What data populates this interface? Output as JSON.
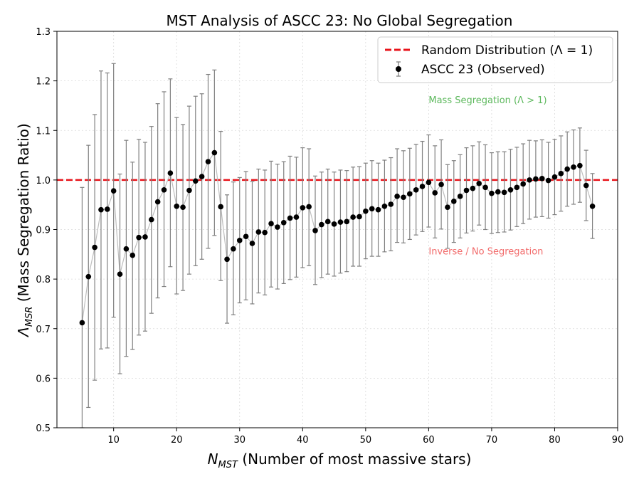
{
  "chart_data": {
    "type": "scatter",
    "title": "MST Analysis of ASCC 23: No Global Segregation",
    "xlabel": {
      "main": "N",
      "sub": "MST",
      "rest": " (Number of most massive stars)"
    },
    "ylabel": {
      "main": "Λ",
      "sub": "MSR",
      "rest": " (Mass Segregation Ratio)"
    },
    "xlim": [
      1,
      90
    ],
    "ylim": [
      0.5,
      1.3
    ],
    "xticks": [
      10,
      20,
      30,
      40,
      50,
      60,
      70,
      80,
      90
    ],
    "yticks": [
      0.5,
      0.6,
      0.7,
      0.8,
      0.9,
      1.0,
      1.1,
      1.2,
      1.3
    ],
    "ytick_labels": [
      "0.5",
      "0.6",
      "0.7",
      "0.8",
      "0.9",
      "1.0",
      "1.1",
      "1.2",
      "1.3"
    ],
    "grid": true,
    "reference_line": {
      "y": 1.0,
      "label": "Random Distribution (Λ = 1)",
      "color": "#e8141b",
      "style": "dashed"
    },
    "legend_position": "top-right",
    "series": [
      {
        "name": "ASCC 23 (Observed)",
        "marker_color": "#000000",
        "line_color": "#bdbdbd",
        "errorbar_color": "#808080",
        "x": [
          5,
          6,
          7,
          8,
          9,
          10,
          11,
          12,
          13,
          14,
          15,
          16,
          17,
          18,
          19,
          20,
          21,
          22,
          23,
          24,
          25,
          26,
          27,
          28,
          29,
          30,
          31,
          32,
          33,
          34,
          35,
          36,
          37,
          38,
          39,
          40,
          41,
          42,
          43,
          44,
          45,
          46,
          47,
          48,
          49,
          50,
          51,
          52,
          53,
          54,
          55,
          56,
          57,
          58,
          59,
          60,
          61,
          62,
          63,
          64,
          65,
          66,
          67,
          68,
          69,
          70,
          71,
          72,
          73,
          74,
          75,
          76,
          77,
          78,
          79,
          80,
          81,
          82,
          83,
          84,
          85,
          86
        ],
        "y": [
          0.712,
          0.805,
          0.864,
          0.94,
          0.941,
          0.978,
          0.81,
          0.861,
          0.848,
          0.884,
          0.885,
          0.92,
          0.956,
          0.98,
          1.014,
          0.947,
          0.945,
          0.979,
          0.998,
          1.007,
          1.037,
          1.055,
          0.946,
          0.84,
          0.861,
          0.878,
          0.886,
          0.872,
          0.895,
          0.894,
          0.912,
          0.905,
          0.914,
          0.923,
          0.925,
          0.944,
          0.946,
          0.898,
          0.91,
          0.916,
          0.911,
          0.915,
          0.916,
          0.925,
          0.926,
          0.937,
          0.942,
          0.94,
          0.947,
          0.951,
          0.967,
          0.965,
          0.972,
          0.98,
          0.987,
          0.995,
          0.974,
          0.991,
          0.945,
          0.957,
          0.967,
          0.979,
          0.983,
          0.993,
          0.985,
          0.973,
          0.976,
          0.975,
          0.98,
          0.985,
          0.992,
          1.0,
          1.002,
          1.003,
          0.999,
          1.006,
          1.013,
          1.022,
          1.026,
          1.029,
          0.989,
          0.947
        ],
        "lo": [
          0.5,
          0.541,
          0.596,
          0.659,
          0.661,
          0.723,
          0.609,
          0.644,
          0.658,
          0.687,
          0.695,
          0.731,
          0.762,
          0.785,
          0.825,
          0.77,
          0.777,
          0.81,
          0.827,
          0.84,
          0.862,
          0.888,
          0.797,
          0.711,
          0.728,
          0.752,
          0.758,
          0.75,
          0.772,
          0.768,
          0.784,
          0.78,
          0.791,
          0.799,
          0.804,
          0.823,
          0.827,
          0.789,
          0.803,
          0.81,
          0.806,
          0.812,
          0.815,
          0.826,
          0.826,
          0.841,
          0.846,
          0.846,
          0.855,
          0.857,
          0.874,
          0.873,
          0.88,
          0.889,
          0.896,
          0.905,
          0.883,
          0.901,
          0.862,
          0.874,
          0.883,
          0.893,
          0.897,
          0.909,
          0.9,
          0.892,
          0.894,
          0.895,
          0.899,
          0.906,
          0.912,
          0.921,
          0.925,
          0.926,
          0.923,
          0.93,
          0.937,
          0.947,
          0.951,
          0.955,
          0.918,
          0.882
        ],
        "hi": [
          0.985,
          1.07,
          1.132,
          1.22,
          1.216,
          1.235,
          1.012,
          1.08,
          1.036,
          1.082,
          1.076,
          1.108,
          1.154,
          1.178,
          1.204,
          1.126,
          1.112,
          1.149,
          1.169,
          1.174,
          1.213,
          1.222,
          1.098,
          0.97,
          0.996,
          1.005,
          1.017,
          0.997,
          1.022,
          1.02,
          1.038,
          1.032,
          1.037,
          1.048,
          1.046,
          1.065,
          1.063,
          1.008,
          1.016,
          1.022,
          1.016,
          1.02,
          1.019,
          1.026,
          1.027,
          1.034,
          1.039,
          1.034,
          1.04,
          1.045,
          1.063,
          1.059,
          1.064,
          1.072,
          1.078,
          1.091,
          1.069,
          1.081,
          1.031,
          1.039,
          1.051,
          1.065,
          1.069,
          1.077,
          1.071,
          1.055,
          1.057,
          1.057,
          1.062,
          1.066,
          1.073,
          1.08,
          1.079,
          1.081,
          1.076,
          1.082,
          1.089,
          1.097,
          1.101,
          1.105,
          1.06,
          1.013
        ]
      }
    ],
    "annotations": [
      {
        "text": "Mass Segregation (Λ > 1)",
        "x": 60,
        "y": 1.155,
        "color": "#5cb85c"
      },
      {
        "text": "Inverse / No Segregation",
        "x": 60,
        "y": 0.85,
        "color": "#f26b6b"
      }
    ]
  }
}
